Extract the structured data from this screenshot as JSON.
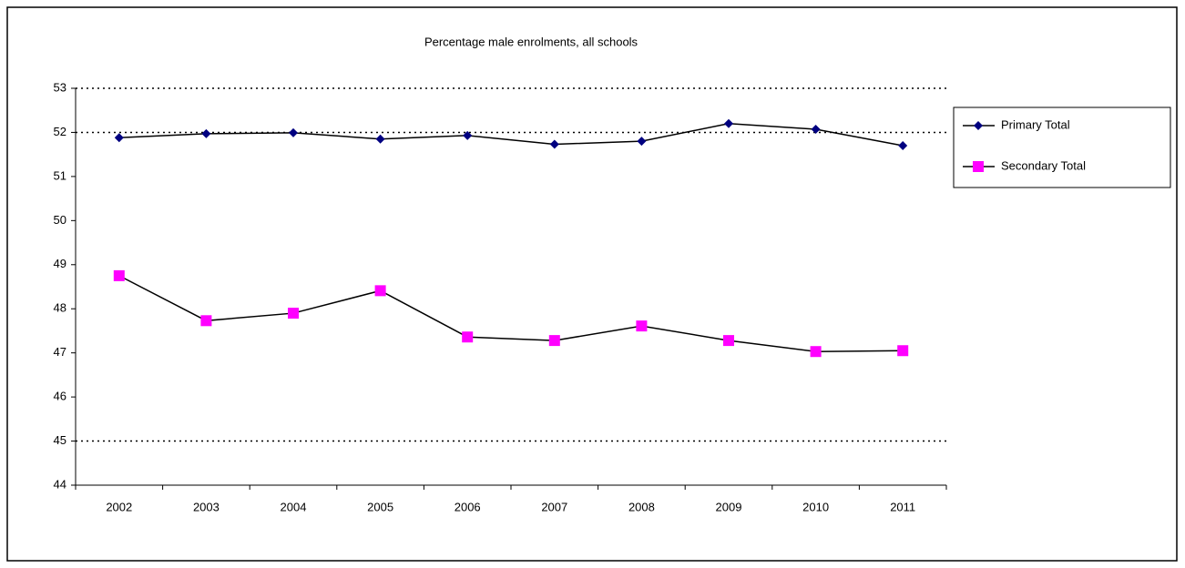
{
  "chart_data": {
    "type": "line",
    "title": "Percentage male enrolments, all schools",
    "categories": [
      "2002",
      "2003",
      "2004",
      "2005",
      "2006",
      "2007",
      "2008",
      "2009",
      "2010",
      "2011"
    ],
    "series": [
      {
        "name": "Primary Total",
        "color": "#000080",
        "marker": "diamond",
        "values": [
          51.88,
          51.97,
          51.99,
          51.85,
          51.93,
          51.73,
          51.8,
          52.2,
          52.07,
          51.7
        ]
      },
      {
        "name": "Secondary Total",
        "color": "#ff00ff",
        "marker": "square",
        "values": [
          48.75,
          47.73,
          47.9,
          48.41,
          47.36,
          47.28,
          47.61,
          47.28,
          47.03,
          47.05
        ]
      }
    ],
    "line_color": "#000000",
    "ylim": [
      44,
      53
    ],
    "yticks": [
      44,
      45,
      46,
      47,
      48,
      49,
      50,
      51,
      52,
      53
    ],
    "grid_lines": [
      45,
      52,
      53
    ],
    "legend": "right"
  }
}
